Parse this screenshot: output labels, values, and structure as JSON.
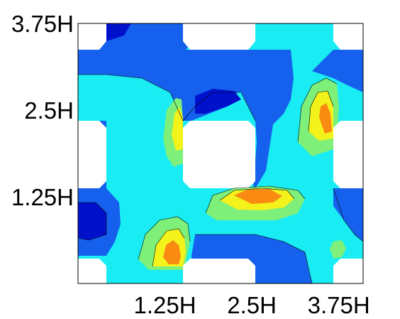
{
  "chart_data": {
    "type": "heatmap",
    "subtype": "filled-contour",
    "title": "",
    "xlabel": "",
    "ylabel": "",
    "xlim": [
      0,
      4.1
    ],
    "ylim": [
      0,
      3.75
    ],
    "x_ticks": [
      {
        "value": 1.25,
        "label": "1.25H"
      },
      {
        "value": 2.5,
        "label": "2.5H"
      },
      {
        "value": 3.75,
        "label": "3.75H"
      }
    ],
    "y_ticks": [
      {
        "value": 1.25,
        "label": "1.25H"
      },
      {
        "value": 2.5,
        "label": "2.5H"
      },
      {
        "value": 3.75,
        "label": "3.75H"
      }
    ],
    "grid": false,
    "colormap": [
      "#0000cc",
      "#1a5cf0",
      "#00ffff",
      "#7fff7f",
      "#ffff00",
      "#ff8c00"
    ],
    "color_levels": [
      {
        "name": "dark-blue",
        "color": "#0011cc"
      },
      {
        "name": "blue",
        "color": "#1660ee"
      },
      {
        "name": "cyan",
        "color": "#19ecf2"
      },
      {
        "name": "green",
        "color": "#7ef07a"
      },
      {
        "name": "yellow",
        "color": "#f3f21b"
      },
      {
        "name": "orange",
        "color": "#f98a12"
      }
    ],
    "obstacles": [
      {
        "x": [
          0,
          0.35
        ],
        "y": [
          0,
          0.35
        ]
      },
      {
        "x": [
          1.5,
          2.55
        ],
        "y": [
          0,
          0.35
        ]
      },
      {
        "x": [
          3.65,
          4.1
        ],
        "y": [
          0,
          0.35
        ]
      },
      {
        "x": [
          0,
          0.35
        ],
        "y": [
          1.4,
          2.35
        ]
      },
      {
        "x": [
          1.5,
          2.55
        ],
        "y": [
          1.4,
          2.35
        ]
      },
      {
        "x": [
          3.65,
          4.1
        ],
        "y": [
          1.4,
          2.35
        ]
      },
      {
        "x": [
          0.35,
          1.5
        ],
        "y": [
          3.4,
          3.75
        ]
      },
      {
        "x": [
          2.55,
          3.65
        ],
        "y": [
          3.4,
          3.75
        ]
      }
    ],
    "peaks": [
      {
        "x": 1.3,
        "y": 0.45,
        "level": "orange"
      },
      {
        "x": 2.55,
        "y": 1.28,
        "level": "orange"
      },
      {
        "x": 3.55,
        "y": 2.35,
        "level": "orange"
      },
      {
        "x": 1.35,
        "y": 2.35,
        "level": "yellow"
      }
    ]
  }
}
